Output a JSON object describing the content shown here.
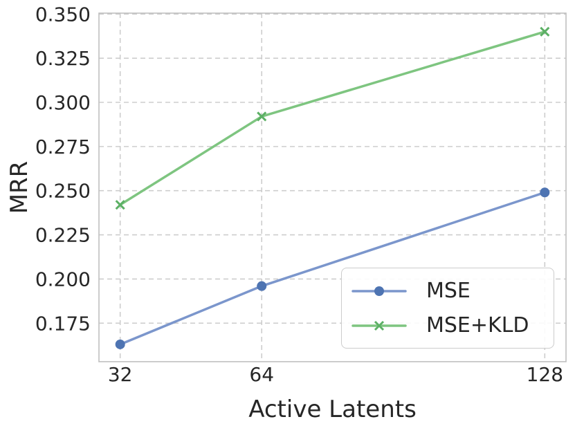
{
  "chart_data": {
    "type": "line",
    "title": "",
    "xlabel": "Active Latents",
    "ylabel": "MRR",
    "x": [
      32,
      64,
      128
    ],
    "series": [
      {
        "name": "MSE",
        "values": [
          0.163,
          0.196,
          0.249
        ],
        "line_color": "#7b96cc",
        "marker_color": "#4e74b2",
        "marker": "circle"
      },
      {
        "name": "MSE+KLD",
        "values": [
          0.242,
          0.292,
          0.34
        ],
        "line_color": "#7ec580",
        "marker_color": "#5cb065",
        "marker": "x"
      }
    ],
    "xticks": {
      "values": [
        32,
        64,
        128
      ],
      "labels": [
        "32",
        "64",
        "128"
      ]
    },
    "yticks": {
      "values": [
        0.175,
        0.2,
        0.225,
        0.25,
        0.275,
        0.3,
        0.325,
        0.35
      ],
      "labels": [
        "0.175",
        "0.200",
        "0.225",
        "0.250",
        "0.275",
        "0.300",
        "0.325",
        "0.350"
      ]
    },
    "xlim": [
      27.2,
      132.8
    ],
    "ylim": [
      0.1532,
      0.3505
    ],
    "grid": true,
    "grid_style": "dashed",
    "legend_position": "lower-right",
    "colors": {
      "grid": "#cdcdcd",
      "spine": "#c0c0c0",
      "text": "#262626",
      "background": "#ffffff"
    }
  }
}
